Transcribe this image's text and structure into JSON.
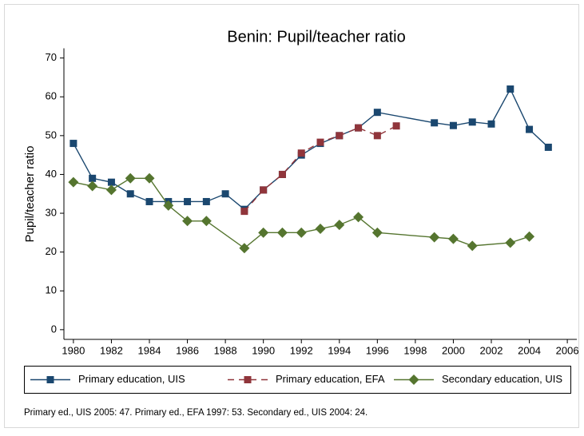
{
  "chart_data": {
    "type": "line",
    "title": "Benin: Pupil/teacher ratio",
    "y_label": "Pupil/teacher ratio",
    "note": "Primary ed., UIS 2005: 47. Primary ed., EFA 1997: 53. Secondary ed., UIS 2004: 24.",
    "xlim": [
      1979.5,
      2006.5
    ],
    "xticks": [
      1980,
      1982,
      1984,
      1986,
      1988,
      1990,
      1992,
      1994,
      1996,
      1998,
      2000,
      2002,
      2004,
      2006
    ],
    "ylim": [
      -2.5,
      72.5
    ],
    "yticks": [
      0,
      10,
      20,
      30,
      40,
      50,
      60,
      70
    ],
    "series": [
      {
        "name": "Primary education, UIS",
        "color": "#1a476f",
        "marker": "square",
        "dash": false,
        "x": [
          1980,
          1981,
          1982,
          1983,
          1984,
          1985,
          1986,
          1987,
          1988,
          1989,
          1990,
          1991,
          1992,
          1993,
          1994,
          1995,
          1996,
          1999,
          2000,
          2001,
          2002,
          2003,
          2004,
          2005
        ],
        "values": [
          48,
          39,
          38,
          35,
          33,
          33,
          33,
          33,
          35,
          31,
          36,
          40,
          45,
          48,
          50,
          52,
          56,
          53.3,
          52.6,
          53.5,
          53,
          62,
          51.6,
          47
        ]
      },
      {
        "name": "Primary education, EFA",
        "color": "#90353b",
        "marker": "square",
        "dash": true,
        "x": [
          1989,
          1990,
          1991,
          1992,
          1993,
          1994,
          1995,
          1996,
          1997
        ],
        "values": [
          30.5,
          36,
          40,
          45.5,
          48.3,
          50,
          52,
          50,
          52.5
        ]
      },
      {
        "name": "Secondary education, UIS",
        "color": "#55752f",
        "marker": "diamond",
        "dash": false,
        "x": [
          1980,
          1981,
          1982,
          1983,
          1984,
          1985,
          1986,
          1987,
          1989,
          1990,
          1991,
          1992,
          1993,
          1994,
          1995,
          1996,
          1999,
          2000,
          2001,
          2003,
          2004
        ],
        "values": [
          38,
          37,
          36,
          39,
          39,
          32,
          28,
          28,
          21,
          25,
          25,
          25,
          26,
          27,
          29,
          25,
          23.8,
          23.4,
          21.6,
          22.4,
          24
        ]
      }
    ]
  }
}
